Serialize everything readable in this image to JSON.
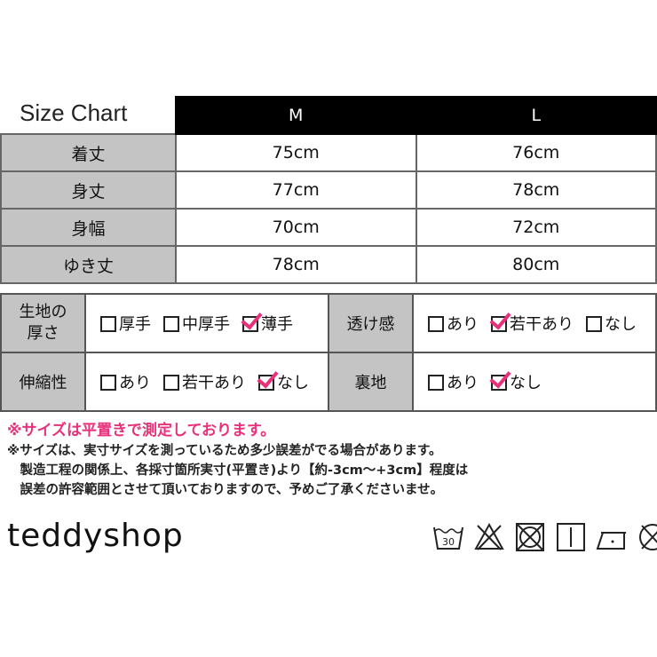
{
  "size_chart": {
    "title": "Size Chart",
    "columns": [
      "M",
      "L"
    ],
    "rows": [
      {
        "label": "着丈",
        "values": [
          "75cm",
          "76cm"
        ]
      },
      {
        "label": "身丈",
        "values": [
          "77cm",
          "78cm"
        ]
      },
      {
        "label": "身幅",
        "values": [
          "70cm",
          "72cm"
        ]
      },
      {
        "label": "ゆき丈",
        "values": [
          "78cm",
          "80cm"
        ]
      }
    ]
  },
  "attributes": {
    "thickness": {
      "label": "生地の厚さ",
      "options": [
        {
          "text": "厚手",
          "checked": false
        },
        {
          "text": "中厚手",
          "checked": false
        },
        {
          "text": "薄手",
          "checked": true
        }
      ]
    },
    "sheerness": {
      "label": "透け感",
      "options": [
        {
          "text": "あり",
          "checked": false
        },
        {
          "text": "若干あり",
          "checked": true
        },
        {
          "text": "なし",
          "checked": false
        }
      ]
    },
    "stretch": {
      "label": "伸縮性",
      "options": [
        {
          "text": "あり",
          "checked": false
        },
        {
          "text": "若干あり",
          "checked": false
        },
        {
          "text": "なし",
          "checked": true
        }
      ]
    },
    "lining": {
      "label": "裏地",
      "options": [
        {
          "text": "あり",
          "checked": false
        },
        {
          "text": "なし",
          "checked": true
        }
      ]
    }
  },
  "notes": {
    "red": "※サイズは平置きで測定しております。",
    "lines": [
      "※サイズは、実寸サイズを測っているため多少誤差がでる場合があります。",
      "　製造工程の関係上、各採寸箇所実寸(平置き)より【約-3cm～+3cm】程度は",
      "　誤差の許容範囲とさせて頂いておりますので、予めご了承くださいませ。"
    ]
  },
  "brand": {
    "logo": "teddyshop"
  },
  "care_icons": {
    "wash_temp": "30",
    "icons": [
      "wash-30-icon",
      "no-bleach-icon",
      "no-tumble-dry-icon",
      "line-dry-icon",
      "iron-low-icon",
      "no-dry-clean-icon"
    ]
  },
  "colors": {
    "accent": "#e8317a",
    "label_bg": "#c4c4c4",
    "header_bg": "#000000"
  }
}
